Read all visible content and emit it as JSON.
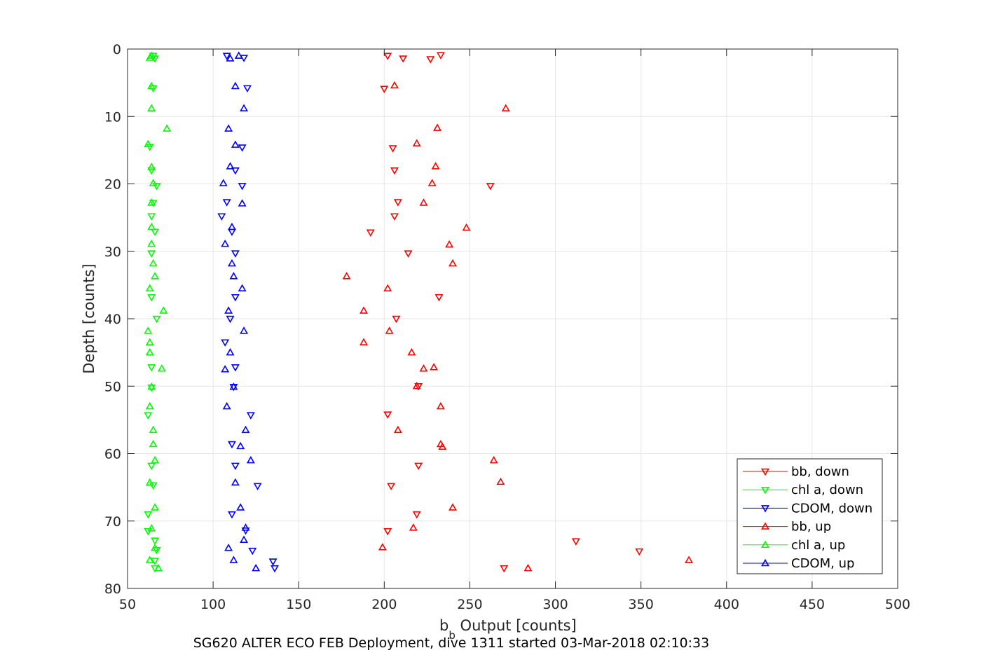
{
  "chart_data": {
    "type": "scatter",
    "xlabel_main": "b",
    "xlabel_sub": "b",
    "xlabel_rest": " Output [counts]",
    "ylabel": "Depth [counts]",
    "caption": "SG620 ALTER ECO FEB Deployment, dive 1311 started 03-Mar-2018 02:10:33",
    "xlim": [
      50,
      500
    ],
    "ylim": [
      0,
      80
    ],
    "y_reversed": true,
    "grid": true,
    "legend_position": "bottom-right",
    "x_ticks": [
      "50",
      "100",
      "150",
      "200",
      "250",
      "300",
      "350",
      "400",
      "450",
      "500"
    ],
    "y_ticks": [
      "0",
      "10",
      "20",
      "30",
      "40",
      "50",
      "60",
      "70",
      "80"
    ],
    "series": [
      {
        "name": "bb, down",
        "color": "#ff0000",
        "marker": "triangle-down",
        "points": [
          [
            202,
            1
          ],
          [
            233,
            0.9
          ],
          [
            211,
            1.4
          ],
          [
            227,
            1.5
          ],
          [
            200,
            5.9
          ],
          [
            205,
            14.7
          ],
          [
            206,
            18
          ],
          [
            262,
            20.3
          ],
          [
            208,
            22.7
          ],
          [
            206,
            24.8
          ],
          [
            192,
            27.2
          ],
          [
            214,
            30.3
          ],
          [
            232,
            36.8
          ],
          [
            207,
            40
          ],
          [
            220,
            50
          ],
          [
            202,
            54.2
          ],
          [
            220,
            61.8
          ],
          [
            204,
            64.8
          ],
          [
            219,
            69
          ],
          [
            202,
            71.5
          ],
          [
            312,
            73
          ],
          [
            349,
            74.5
          ],
          [
            270,
            77
          ]
        ]
      },
      {
        "name": "chl a, down",
        "color": "#00ff00",
        "marker": "triangle-down",
        "points": [
          [
            65,
            1
          ],
          [
            66,
            1.4
          ],
          [
            65,
            5.8
          ],
          [
            63,
            14.5
          ],
          [
            64,
            18
          ],
          [
            67,
            20.3
          ],
          [
            65,
            22.8
          ],
          [
            64,
            24.8
          ],
          [
            66,
            27.1
          ],
          [
            64,
            30.3
          ],
          [
            64,
            36.8
          ],
          [
            67,
            40
          ],
          [
            64,
            47.2
          ],
          [
            64,
            50.2
          ],
          [
            62,
            54.3
          ],
          [
            64,
            61.8
          ],
          [
            65,
            64.7
          ],
          [
            62,
            69
          ],
          [
            62,
            71.5
          ],
          [
            66,
            72.9
          ],
          [
            67,
            74.3
          ],
          [
            66,
            75.9
          ],
          [
            66,
            77
          ]
        ]
      },
      {
        "name": "CDOM, down",
        "color": "#0000ff",
        "marker": "triangle-down",
        "points": [
          [
            108,
            1
          ],
          [
            118,
            1.3
          ],
          [
            120,
            5.8
          ],
          [
            117,
            14.6
          ],
          [
            113,
            18
          ],
          [
            117,
            20.3
          ],
          [
            108,
            22.7
          ],
          [
            105,
            24.8
          ],
          [
            111,
            27.1
          ],
          [
            113,
            30.3
          ],
          [
            113,
            36.8
          ],
          [
            110,
            40
          ],
          [
            107,
            43.5
          ],
          [
            113,
            47.2
          ],
          [
            112,
            50.1
          ],
          [
            122,
            54.3
          ],
          [
            111,
            58.6
          ],
          [
            113,
            61.8
          ],
          [
            126,
            64.8
          ],
          [
            111,
            69
          ],
          [
            119,
            71.4
          ],
          [
            123,
            74.4
          ],
          [
            135,
            76
          ],
          [
            136,
            77
          ]
        ]
      },
      {
        "name": "bb, up",
        "color": "#ff0000",
        "marker": "triangle-up",
        "points": [
          [
            206,
            5.4
          ],
          [
            271,
            8.8
          ],
          [
            231,
            11.7
          ],
          [
            219,
            14
          ],
          [
            230,
            17.4
          ],
          [
            228,
            19.9
          ],
          [
            223,
            22.8
          ],
          [
            248,
            26.5
          ],
          [
            238,
            29
          ],
          [
            240,
            31.8
          ],
          [
            178,
            33.7
          ],
          [
            202,
            35.5
          ],
          [
            188,
            38.8
          ],
          [
            203,
            41.8
          ],
          [
            188,
            43.5
          ],
          [
            216,
            45
          ],
          [
            223,
            47.4
          ],
          [
            229,
            47.2
          ],
          [
            219,
            50
          ],
          [
            233,
            53
          ],
          [
            208,
            56.5
          ],
          [
            233,
            58.6
          ],
          [
            234,
            59
          ],
          [
            264,
            61
          ],
          [
            268,
            64.2
          ],
          [
            240,
            68
          ],
          [
            217,
            71
          ],
          [
            199,
            73.9
          ],
          [
            378,
            75.8
          ],
          [
            284,
            77
          ]
        ]
      },
      {
        "name": "chl a, up",
        "color": "#00ff00",
        "marker": "triangle-up",
        "points": [
          [
            64,
            1
          ],
          [
            63,
            1.3
          ],
          [
            64,
            5.5
          ],
          [
            64,
            8.8
          ],
          [
            73,
            11.8
          ],
          [
            62,
            14.1
          ],
          [
            64,
            17.5
          ],
          [
            65,
            19.9
          ],
          [
            64,
            22.8
          ],
          [
            64,
            26.4
          ],
          [
            64,
            28.9
          ],
          [
            65,
            31.8
          ],
          [
            66,
            33.7
          ],
          [
            63,
            35.5
          ],
          [
            71,
            38.8
          ],
          [
            62,
            41.8
          ],
          [
            63,
            43.5
          ],
          [
            63,
            45
          ],
          [
            70,
            47.4
          ],
          [
            64,
            50.1
          ],
          [
            63,
            53
          ],
          [
            65,
            56.5
          ],
          [
            65,
            58.6
          ],
          [
            66,
            61
          ],
          [
            63,
            64.3
          ],
          [
            66,
            68
          ],
          [
            64,
            71.1
          ],
          [
            66,
            74
          ],
          [
            63,
            75.8
          ],
          [
            68,
            77
          ]
        ]
      },
      {
        "name": "CDOM, up",
        "color": "#0000ff",
        "marker": "triangle-up",
        "points": [
          [
            115,
            1
          ],
          [
            110,
            1.4
          ],
          [
            113,
            5.5
          ],
          [
            118,
            8.8
          ],
          [
            109,
            11.8
          ],
          [
            113,
            14.2
          ],
          [
            110,
            17.4
          ],
          [
            106,
            19.9
          ],
          [
            117,
            22.9
          ],
          [
            111,
            26.4
          ],
          [
            107,
            28.9
          ],
          [
            111,
            31.8
          ],
          [
            112,
            33.7
          ],
          [
            117,
            35.5
          ],
          [
            109,
            38.8
          ],
          [
            118,
            41.8
          ],
          [
            110,
            45
          ],
          [
            107,
            47.5
          ],
          [
            112,
            50.1
          ],
          [
            108,
            53
          ],
          [
            119,
            56.5
          ],
          [
            116,
            58.9
          ],
          [
            122,
            61
          ],
          [
            113,
            64.3
          ],
          [
            116,
            68
          ],
          [
            119,
            71
          ],
          [
            118,
            72.8
          ],
          [
            109,
            74
          ],
          [
            112,
            75.8
          ],
          [
            125,
            77
          ]
        ]
      }
    ]
  }
}
